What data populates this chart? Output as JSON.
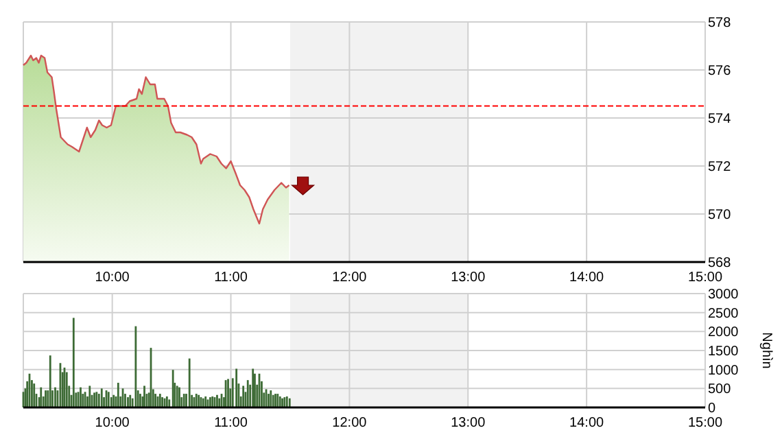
{
  "chart_data": [
    {
      "type": "area",
      "xlim": [
        9.25,
        15
      ],
      "ylim": [
        568,
        578
      ],
      "yticks": [
        568,
        570,
        572,
        574,
        576,
        578
      ],
      "xticks": [
        {
          "value": 10,
          "label": "10:00"
        },
        {
          "value": 11,
          "label": "11:00"
        },
        {
          "value": 12,
          "label": "12:00"
        },
        {
          "value": 13,
          "label": "13:00"
        },
        {
          "value": 14,
          "label": "14:00"
        },
        {
          "value": 15,
          "label": "15:00"
        }
      ],
      "grid": true,
      "ref_lines": [
        {
          "axis": "y",
          "value": 574.5,
          "color": "#ff0000",
          "line_style": "dashed"
        }
      ],
      "bands": [
        {
          "axis": "x",
          "from": 11.5,
          "to": 13,
          "color": "#f2f2f2"
        }
      ],
      "series": [
        {
          "color": "#d05555",
          "x": [
            9.25,
            9.275,
            9.314,
            9.333,
            9.36,
            9.38,
            9.4,
            9.43,
            9.453,
            9.49,
            9.508,
            9.527,
            9.566,
            9.585,
            9.624,
            9.66,
            9.69,
            9.72,
            9.74,
            9.787,
            9.818,
            9.857,
            9.888,
            9.915,
            9.953,
            9.99,
            10.03,
            10.058,
            10.11,
            10.147,
            10.205,
            10.225,
            10.25,
            10.283,
            10.32,
            10.36,
            10.38,
            10.438,
            10.47,
            10.496,
            10.535,
            10.574,
            10.63,
            10.67,
            10.71,
            10.748,
            10.767,
            10.826,
            10.88,
            10.92,
            10.96,
            11.0,
            11.04,
            11.078,
            11.116,
            11.155,
            11.19,
            11.24,
            11.27,
            11.31,
            11.368,
            11.426,
            11.465,
            11.492
          ],
          "values": [
            576.2,
            576.3,
            576.6,
            576.4,
            576.5,
            576.3,
            576.6,
            576.5,
            575.9,
            575.7,
            575.1,
            574.4,
            573.2,
            573.1,
            572.9,
            572.8,
            572.7,
            572.6,
            572.9,
            573.6,
            573.2,
            573.5,
            573.9,
            573.7,
            573.6,
            573.7,
            574.5,
            574.5,
            574.5,
            574.7,
            574.8,
            575.2,
            575.0,
            575.7,
            575.4,
            575.4,
            574.8,
            574.8,
            574.5,
            573.8,
            573.4,
            573.4,
            573.3,
            573.2,
            572.9,
            572.1,
            572.3,
            572.5,
            572.4,
            572.1,
            571.9,
            572.2,
            571.7,
            571.2,
            571.0,
            570.7,
            570.2,
            569.6,
            570.2,
            570.6,
            571.0,
            571.3,
            571.1,
            571.2
          ]
        }
      ]
    },
    {
      "type": "bar",
      "xlim": [
        9.25,
        15
      ],
      "ylim": [
        0,
        3000
      ],
      "yticks": [
        0,
        500,
        1000,
        1500,
        2000,
        2500,
        3000
      ],
      "ylabel": "Nghìn",
      "xticks": [
        {
          "value": 10,
          "label": "10:00"
        },
        {
          "value": 11,
          "label": "11:00"
        },
        {
          "value": 12,
          "label": "12:00"
        },
        {
          "value": 13,
          "label": "13:00"
        },
        {
          "value": 14,
          "label": "14:00"
        },
        {
          "value": 15,
          "label": "15:00"
        }
      ],
      "grid": true,
      "bands": [
        {
          "axis": "x",
          "from": 11.5,
          "to": 13,
          "color": "#f2f2f2"
        }
      ],
      "series": [
        {
          "color": "#3d6b35",
          "x": [
            9.25,
            9.267,
            9.283,
            9.302,
            9.322,
            9.341,
            9.36,
            9.384,
            9.399,
            9.419,
            9.438,
            9.457,
            9.477,
            9.496,
            9.519,
            9.539,
            9.562,
            9.581,
            9.597,
            9.616,
            9.636,
            9.655,
            9.674,
            9.694,
            9.713,
            9.733,
            9.752,
            9.771,
            9.791,
            9.81,
            9.829,
            9.849,
            9.868,
            9.888,
            9.911,
            9.93,
            9.95,
            9.969,
            9.992,
            10.012,
            10.031,
            10.05,
            10.07,
            10.089,
            10.109,
            10.132,
            10.151,
            10.171,
            10.198,
            10.217,
            10.236,
            10.256,
            10.271,
            10.291,
            10.31,
            10.326,
            10.345,
            10.364,
            10.384,
            10.403,
            10.422,
            10.442,
            10.461,
            10.481,
            10.512,
            10.527,
            10.547,
            10.566,
            10.585,
            10.605,
            10.624,
            10.651,
            10.671,
            10.69,
            10.709,
            10.729,
            10.748,
            10.767,
            10.787,
            10.806,
            10.826,
            10.845,
            10.864,
            10.884,
            10.903,
            10.922,
            10.942,
            10.957,
            10.977,
            10.996,
            11.016,
            11.047,
            11.066,
            11.085,
            11.105,
            11.124,
            11.143,
            11.163,
            11.186,
            11.202,
            11.221,
            11.24,
            11.26,
            11.279,
            11.298,
            11.318,
            11.337,
            11.357,
            11.376,
            11.395,
            11.415,
            11.434,
            11.453,
            11.473,
            11.496
          ],
          "values": [
            410,
            500,
            690,
            890,
            720,
            630,
            360,
            270,
            530,
            290,
            450,
            450,
            1370,
            450,
            530,
            450,
            1170,
            930,
            1050,
            930,
            570,
            330,
            2360,
            390,
            410,
            530,
            360,
            410,
            290,
            570,
            330,
            390,
            410,
            360,
            500,
            270,
            450,
            410,
            270,
            330,
            290,
            650,
            290,
            500,
            360,
            270,
            330,
            240,
            2140,
            450,
            360,
            290,
            570,
            360,
            390,
            1570,
            480,
            360,
            290,
            360,
            270,
            240,
            290,
            210,
            990,
            650,
            570,
            530,
            270,
            360,
            360,
            1290,
            330,
            270,
            360,
            330,
            270,
            240,
            290,
            210,
            270,
            290,
            270,
            330,
            240,
            360,
            270,
            720,
            750,
            500,
            770,
            1020,
            630,
            290,
            570,
            410,
            720,
            600,
            1020,
            890,
            600,
            890,
            690,
            390,
            480,
            360,
            450,
            330,
            360,
            360,
            290,
            240,
            270,
            290,
            240
          ]
        }
      ]
    }
  ]
}
